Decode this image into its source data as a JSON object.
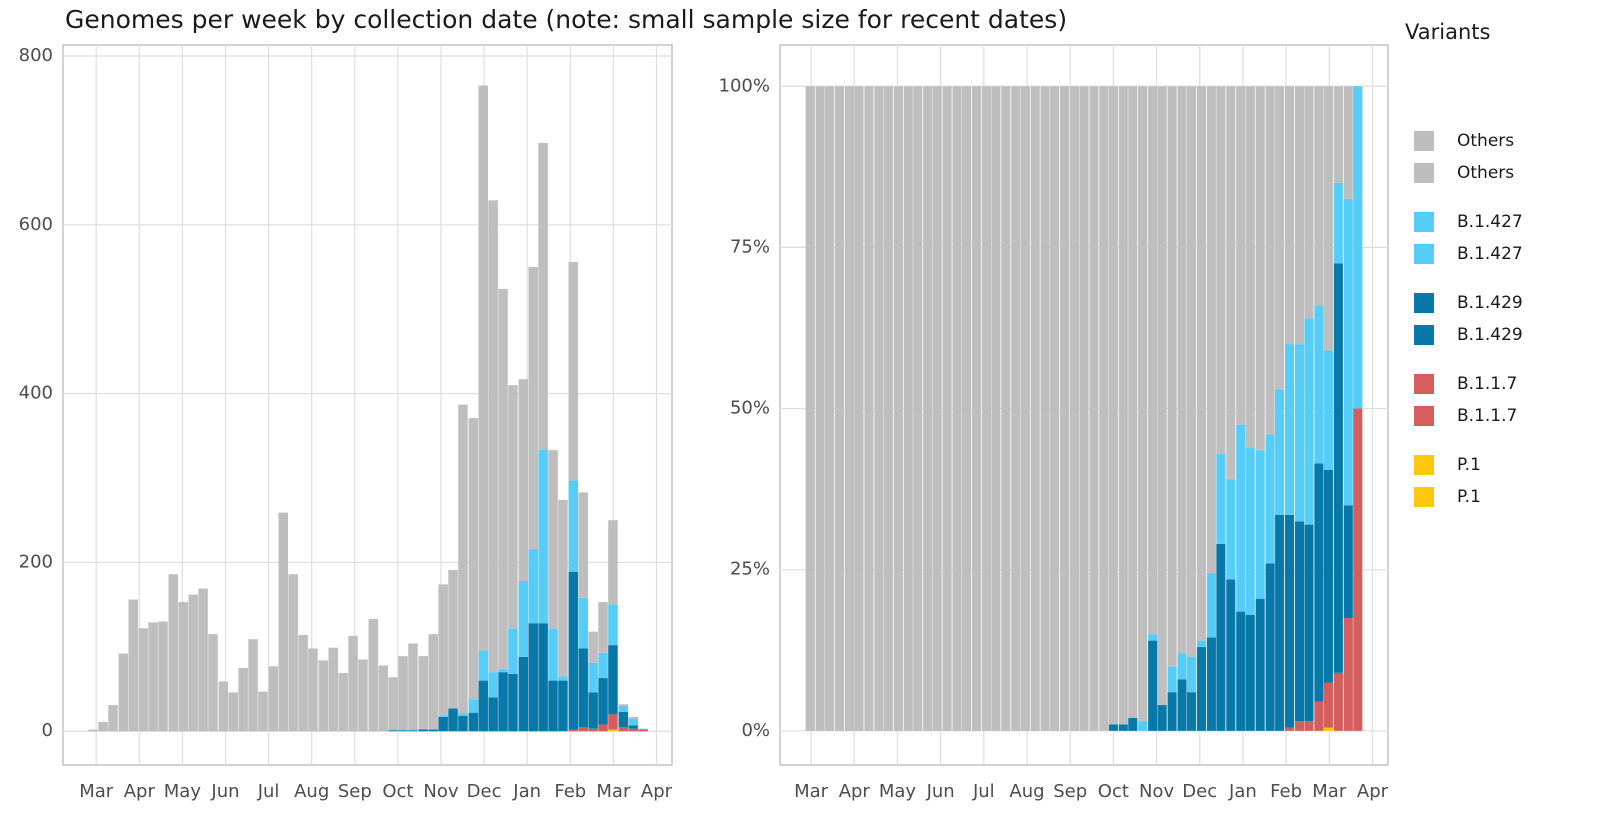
{
  "chart_data": [
    {
      "type": "bar",
      "stacked": true,
      "title": "Genomes per week by collection date (note: small sample size for recent dates)",
      "x": [
        -0.07,
        0.16,
        0.39,
        0.63,
        0.86,
        1.09,
        1.32,
        1.55,
        1.79,
        2.02,
        2.25,
        2.48,
        2.71,
        2.95,
        3.18,
        3.41,
        3.64,
        3.87,
        4.11,
        4.34,
        4.57,
        4.8,
        5.03,
        5.27,
        5.5,
        5.73,
        5.96,
        6.19,
        6.43,
        6.66,
        6.89,
        7.12,
        7.35,
        7.59,
        7.82,
        8.05,
        8.28,
        8.51,
        8.75,
        8.98,
        9.21,
        9.44,
        9.67,
        9.91,
        10.14,
        10.37,
        10.6,
        10.83,
        11.07,
        11.3,
        11.53,
        11.76,
        11.99,
        12.23,
        12.46,
        12.69
      ],
      "series": [
        {
          "name": "Others",
          "color": "#bebebe",
          "values": [
            2,
            11,
            31,
            92,
            156,
            122,
            129,
            130,
            186,
            153,
            162,
            169,
            115,
            59,
            46,
            75,
            109,
            47,
            77,
            259,
            186,
            114,
            98,
            84,
            99,
            69,
            113,
            85,
            133,
            78,
            62,
            87,
            102,
            86,
            113,
            155,
            164,
            366,
            333,
            669,
            559,
            450,
            288,
            239,
            334,
            363,
            211,
            209,
            259,
            125,
            37,
            60,
            100,
            2,
            2,
            0
          ]
        },
        {
          "name": "B.1.427",
          "color": "#56cdf6",
          "values": [
            0,
            0,
            0,
            0,
            0,
            0,
            0,
            0,
            0,
            0,
            0,
            0,
            0,
            0,
            0,
            0,
            0,
            0,
            0,
            0,
            0,
            0,
            0,
            0,
            0,
            0,
            0,
            0,
            0,
            0,
            1,
            1,
            1,
            1,
            0,
            2,
            0,
            3,
            16,
            36,
            30,
            4,
            54,
            90,
            88,
            206,
            62,
            5,
            108,
            60,
            35,
            30,
            48,
            7,
            8,
            1
          ]
        },
        {
          "name": "B.1.429",
          "color": "#0878a8",
          "values": [
            0,
            0,
            0,
            0,
            0,
            0,
            0,
            0,
            0,
            0,
            0,
            0,
            0,
            0,
            0,
            0,
            0,
            0,
            0,
            0,
            0,
            0,
            0,
            0,
            0,
            0,
            0,
            0,
            0,
            0,
            1,
            1,
            1,
            2,
            2,
            17,
            27,
            18,
            22,
            60,
            40,
            70,
            68,
            88,
            128,
            128,
            60,
            60,
            187,
            93,
            43,
            55,
            82,
            18,
            4,
            0
          ]
        },
        {
          "name": "B.1.1.7",
          "color": "#d45d5d",
          "values": [
            0,
            0,
            0,
            0,
            0,
            0,
            0,
            0,
            0,
            0,
            0,
            0,
            0,
            0,
            0,
            0,
            0,
            0,
            0,
            0,
            0,
            0,
            0,
            0,
            0,
            0,
            0,
            0,
            0,
            0,
            0,
            0,
            0,
            0,
            0,
            0,
            0,
            0,
            0,
            0,
            0,
            0,
            0,
            0,
            0,
            0,
            0,
            0,
            2,
            5,
            3,
            8,
            18,
            5,
            3,
            2
          ]
        },
        {
          "name": "P.1",
          "color": "#fdc70d",
          "values": [
            0,
            0,
            0,
            0,
            0,
            0,
            0,
            0,
            0,
            0,
            0,
            0,
            0,
            0,
            0,
            0,
            0,
            0,
            0,
            0,
            0,
            0,
            0,
            0,
            0,
            0,
            0,
            0,
            0,
            0,
            0,
            0,
            0,
            0,
            0,
            0,
            0,
            0,
            0,
            0,
            0,
            0,
            0,
            0,
            0,
            0,
            0,
            0,
            0,
            0,
            0,
            0,
            2,
            0,
            0,
            0
          ]
        }
      ],
      "xlim": [
        -0.77,
        13.36
      ],
      "xticks": [
        {
          "value": 0,
          "label": "Mar"
        },
        {
          "value": 1,
          "label": "Apr"
        },
        {
          "value": 2,
          "label": "May"
        },
        {
          "value": 3,
          "label": "Jun"
        },
        {
          "value": 4,
          "label": "Jul"
        },
        {
          "value": 5,
          "label": "Aug"
        },
        {
          "value": 6,
          "label": "Sep"
        },
        {
          "value": 7,
          "label": "Oct"
        },
        {
          "value": 8,
          "label": "Nov"
        },
        {
          "value": 9,
          "label": "Dec"
        },
        {
          "value": 10,
          "label": "Jan"
        },
        {
          "value": 11,
          "label": "Feb"
        },
        {
          "value": 12,
          "label": "Mar"
        },
        {
          "value": 13,
          "label": "Apr"
        }
      ],
      "ylim": [
        -40,
        813
      ],
      "yticks": [
        0,
        200,
        400,
        600,
        800
      ],
      "grid": true
    },
    {
      "type": "bar",
      "stacked": true,
      "legend_title": "Variants",
      "x": [
        -0.02,
        0.21,
        0.43,
        0.66,
        0.89,
        1.11,
        1.34,
        1.57,
        1.79,
        2.02,
        2.25,
        2.47,
        2.7,
        2.92,
        3.15,
        3.38,
        3.6,
        3.83,
        4.06,
        4.28,
        4.51,
        4.74,
        4.96,
        5.19,
        5.42,
        5.64,
        5.87,
        6.1,
        6.32,
        6.55,
        6.78,
        7.0,
        7.23,
        7.45,
        7.68,
        7.91,
        8.13,
        8.36,
        8.59,
        8.81,
        9.04,
        9.27,
        9.49,
        9.72,
        9.95,
        10.17,
        10.4,
        10.63,
        10.85,
        11.08,
        11.31,
        11.53,
        11.76,
        11.98,
        12.21,
        12.44,
        12.66
      ],
      "series": [
        {
          "name": "Others",
          "color": "#bebebe",
          "values": [
            100,
            100,
            100,
            100,
            100,
            100,
            100,
            100,
            100,
            100,
            100,
            100,
            100,
            100,
            100,
            100,
            100,
            100,
            100,
            100,
            100,
            100,
            100,
            100,
            100,
            100,
            100,
            100,
            100,
            100,
            100,
            99,
            99,
            98,
            98.5,
            85,
            96,
            90,
            88,
            88.5,
            86,
            75.5,
            57,
            61,
            52.5,
            56,
            56.5,
            54,
            47,
            40,
            40,
            36,
            34,
            41,
            15,
            17.5,
            0
          ]
        },
        {
          "name": "B.1.427",
          "color": "#56cdf6",
          "values": [
            0,
            0,
            0,
            0,
            0,
            0,
            0,
            0,
            0,
            0,
            0,
            0,
            0,
            0,
            0,
            0,
            0,
            0,
            0,
            0,
            0,
            0,
            0,
            0,
            0,
            0,
            0,
            0,
            0,
            0,
            0,
            0,
            0,
            0,
            1.5,
            1,
            0,
            4,
            4,
            5.5,
            1,
            10,
            14,
            15.5,
            29,
            26,
            23,
            20,
            19.5,
            26.5,
            27.5,
            32,
            24.5,
            18.5,
            12.5,
            47.5,
            50
          ]
        },
        {
          "name": "B.1.429",
          "color": "#0878a8",
          "values": [
            0,
            0,
            0,
            0,
            0,
            0,
            0,
            0,
            0,
            0,
            0,
            0,
            0,
            0,
            0,
            0,
            0,
            0,
            0,
            0,
            0,
            0,
            0,
            0,
            0,
            0,
            0,
            0,
            0,
            0,
            0,
            1,
            1,
            2,
            0,
            14,
            4,
            6,
            8,
            6,
            13,
            14.5,
            29,
            23.5,
            18.5,
            18,
            20.5,
            26,
            33.5,
            33,
            31,
            30.5,
            37,
            33,
            63.5,
            17.5,
            0
          ]
        },
        {
          "name": "B.1.1.7",
          "color": "#d45d5d",
          "values": [
            0,
            0,
            0,
            0,
            0,
            0,
            0,
            0,
            0,
            0,
            0,
            0,
            0,
            0,
            0,
            0,
            0,
            0,
            0,
            0,
            0,
            0,
            0,
            0,
            0,
            0,
            0,
            0,
            0,
            0,
            0,
            0,
            0,
            0,
            0,
            0,
            0,
            0,
            0,
            0,
            0,
            0,
            0,
            0,
            0,
            0,
            0,
            0,
            0,
            0.5,
            1.5,
            1.5,
            4.5,
            7,
            9,
            17.5,
            50
          ]
        },
        {
          "name": "P.1",
          "color": "#fdc70d",
          "values": [
            0,
            0,
            0,
            0,
            0,
            0,
            0,
            0,
            0,
            0,
            0,
            0,
            0,
            0,
            0,
            0,
            0,
            0,
            0,
            0,
            0,
            0,
            0,
            0,
            0,
            0,
            0,
            0,
            0,
            0,
            0,
            0,
            0,
            0,
            0,
            0,
            0,
            0,
            0,
            0,
            0,
            0,
            0,
            0,
            0,
            0,
            0,
            0,
            0,
            0,
            0,
            0,
            0,
            0.5,
            0,
            0,
            0
          ]
        }
      ],
      "xlim": [
        -0.72,
        13.36
      ],
      "xticks": [
        {
          "value": 0,
          "label": "Mar"
        },
        {
          "value": 1,
          "label": "Apr"
        },
        {
          "value": 2,
          "label": "May"
        },
        {
          "value": 3,
          "label": "Jun"
        },
        {
          "value": 4,
          "label": "Jul"
        },
        {
          "value": 5,
          "label": "Aug"
        },
        {
          "value": 6,
          "label": "Sep"
        },
        {
          "value": 7,
          "label": "Oct"
        },
        {
          "value": 8,
          "label": "Nov"
        },
        {
          "value": 9,
          "label": "Dec"
        },
        {
          "value": 10,
          "label": "Jan"
        },
        {
          "value": 11,
          "label": "Feb"
        },
        {
          "value": 12,
          "label": "Mar"
        },
        {
          "value": 13,
          "label": "Apr"
        }
      ],
      "ylim": [
        -5.3,
        106.4
      ],
      "yticks": [
        {
          "value": 0,
          "label": "0%"
        },
        {
          "value": 25,
          "label": "25%"
        },
        {
          "value": 50,
          "label": "50%"
        },
        {
          "value": 75,
          "label": "75%"
        },
        {
          "value": 100,
          "label": "100%"
        }
      ],
      "grid": true
    }
  ]
}
